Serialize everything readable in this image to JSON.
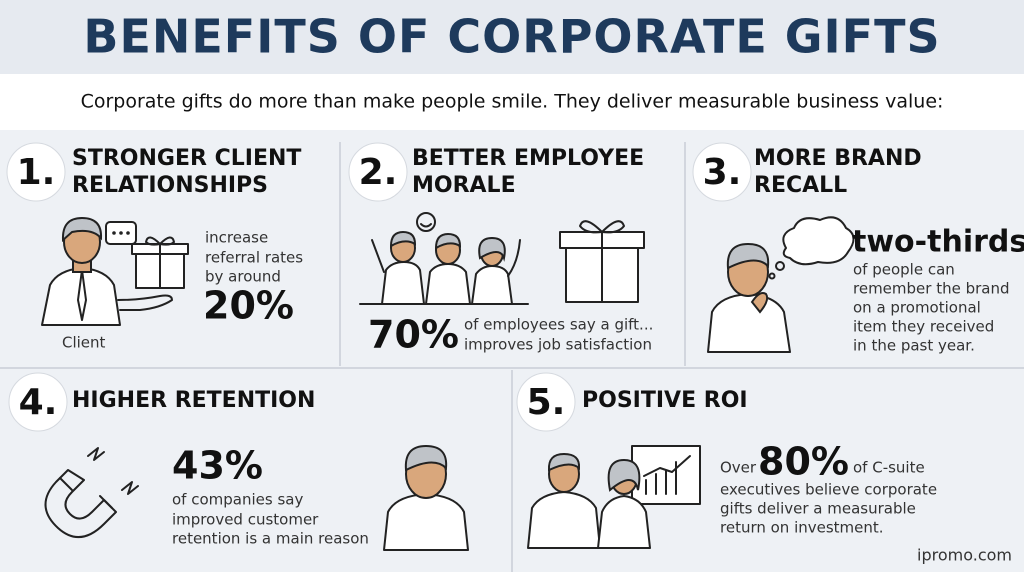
{
  "header": {
    "title": "BENEFITS OF CORPORATE GIFTS",
    "subtitle": "Corporate gifts do more than make people smile. They deliver measurable business value:"
  },
  "sections": [
    {
      "number": "1.",
      "title": [
        "STRONGER CLIENT",
        "RELATIONSHIPS"
      ],
      "text_before": [
        "increase",
        "referral rates",
        "by around"
      ],
      "stat": "20%",
      "figure_label": "Client"
    },
    {
      "number": "2.",
      "title": [
        "BETTER EMPLOYEE",
        "MORALE"
      ],
      "stat": "70%",
      "text_after": [
        "of employees say a gift...",
        "improves job satisfaction"
      ]
    },
    {
      "number": "3.",
      "title": [
        "MORE BRAND",
        "RECALL"
      ],
      "stat": "two-thirds",
      "text_after": [
        "of people can",
        "remember the brand",
        "on a promotional",
        "item they received",
        "in the past year."
      ]
    },
    {
      "number": "4.",
      "title": [
        "HIGHER RETENTION"
      ],
      "stat": "43%",
      "text_after": [
        "of companies say",
        "improved customer",
        "retention is a main reason"
      ]
    },
    {
      "number": "5.",
      "title": [
        "POSITIVE ROI"
      ],
      "text_before": [
        "Over"
      ],
      "stat": "80%",
      "text_after": [
        "of C-suite",
        "executives believe corporate",
        "gifts deliver a measurable",
        "return on investment."
      ]
    }
  ],
  "footer": "ipromo.com"
}
